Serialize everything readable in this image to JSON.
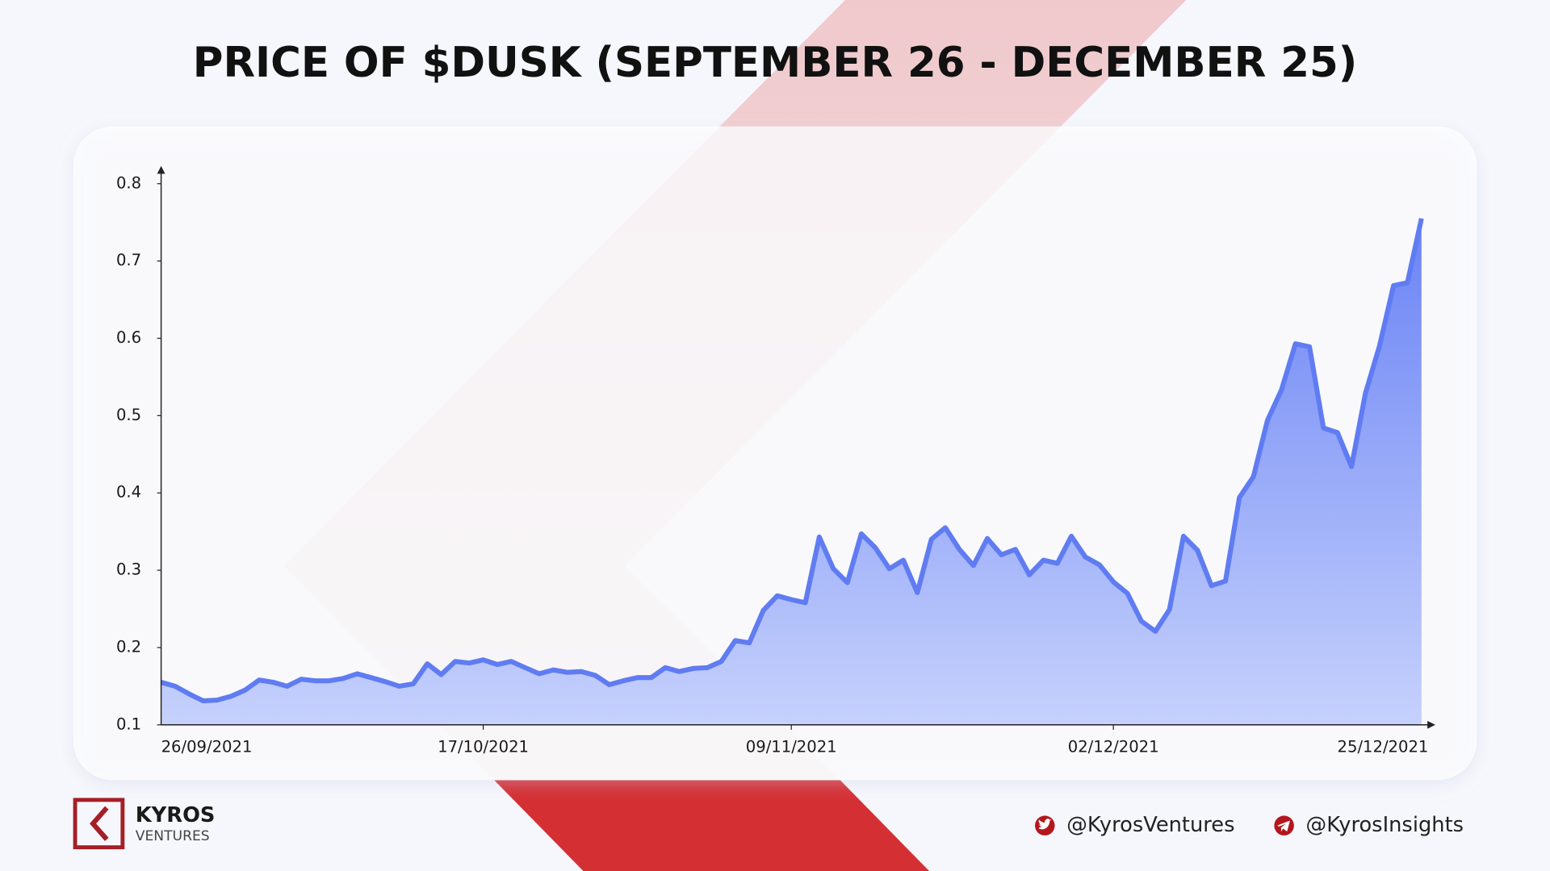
{
  "chart_data": {
    "type": "area",
    "title": "PRICE OF $DUSK (SEPTEMBER 26 - DECEMBER 25)",
    "categories": [
      "26/09/2021",
      null,
      null,
      null,
      null,
      null,
      null,
      null,
      null,
      null,
      null,
      null,
      null,
      null,
      null,
      null,
      null,
      null,
      null,
      null,
      null,
      null,
      null,
      "17/10/2021",
      null,
      null,
      null,
      null,
      null,
      null,
      null,
      null,
      null,
      null,
      null,
      null,
      null,
      null,
      null,
      null,
      null,
      null,
      null,
      null,
      null,
      "09/11/2021",
      null,
      null,
      null,
      null,
      null,
      null,
      null,
      null,
      null,
      null,
      null,
      null,
      null,
      null,
      null,
      null,
      null,
      null,
      null,
      null,
      null,
      null,
      "02/12/2021",
      null,
      null,
      null,
      null,
      null,
      null,
      null,
      null,
      null,
      null,
      null,
      null,
      null,
      null,
      null,
      null,
      null,
      null,
      null,
      null,
      null,
      "25/12/2021"
    ],
    "values": [
      0.155,
      0.15,
      0.14,
      0.131,
      0.132,
      0.137,
      0.145,
      0.158,
      0.155,
      0.15,
      0.159,
      0.157,
      0.157,
      0.16,
      0.166,
      0.161,
      0.156,
      0.15,
      0.153,
      0.179,
      0.165,
      0.182,
      0.18,
      0.184,
      0.178,
      0.182,
      0.174,
      0.166,
      0.171,
      0.168,
      0.169,
      0.164,
      0.152,
      0.157,
      0.161,
      0.161,
      0.174,
      0.169,
      0.173,
      0.174,
      0.182,
      0.209,
      0.206,
      0.248,
      0.267,
      0.262,
      0.258,
      0.343,
      0.302,
      0.284,
      0.347,
      0.329,
      0.302,
      0.313,
      0.271,
      0.34,
      0.355,
      0.327,
      0.306,
      0.341,
      0.32,
      0.327,
      0.294,
      0.313,
      0.309,
      0.344,
      0.317,
      0.307,
      0.285,
      0.27,
      0.234,
      0.221,
      0.249,
      0.344,
      0.326,
      0.28,
      0.286,
      0.394,
      0.421,
      0.494,
      0.533,
      0.593,
      0.589,
      0.484,
      0.478,
      0.434,
      0.529,
      0.59,
      0.668,
      0.672,
      0.755
    ],
    "color": "#607cf2",
    "ylim": [
      0.1,
      0.8
    ],
    "yticks": [
      0.1,
      0.2,
      0.3,
      0.4,
      0.5,
      0.6,
      0.7,
      0.8
    ]
  },
  "brand": {
    "name": "KYROS",
    "sub": "VENTURES"
  },
  "social": [
    "@KyrosVentures",
    "@KyrosInsights"
  ]
}
